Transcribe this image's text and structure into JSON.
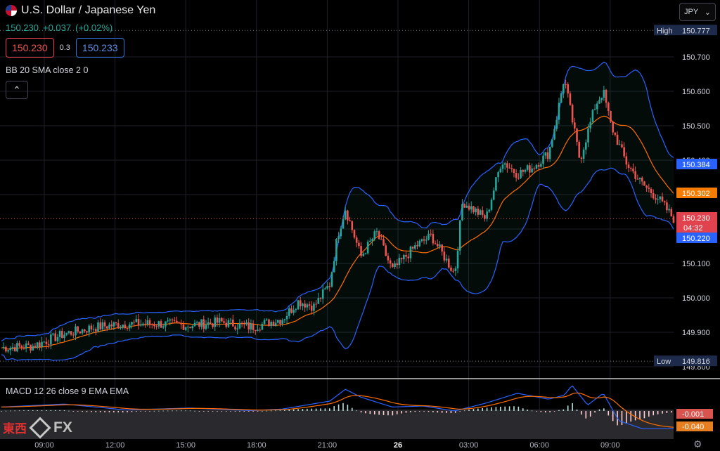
{
  "header": {
    "title": "U.S. Dollar / Japanese Yen",
    "last_price": "150.230",
    "change": "+0.037",
    "change_pct": "(+0.02%)",
    "sell_price": "150.230",
    "spread": "0.3",
    "buy_price": "150.233"
  },
  "indicators": {
    "bb_label": "BB 20 SMA close 2 0",
    "macd_label": "MACD 12 26 close 9 EMA EMA"
  },
  "currency_select": {
    "value": "JPY"
  },
  "icons": {
    "flag": "us-japan-flag-icon",
    "collapse": "chevron-up-icon",
    "dropdown": "chevron-down-icon",
    "settings": "gear-icon"
  },
  "watermark": {
    "kanji": "東西",
    "fx": "FX"
  },
  "colors": {
    "up": "#26a69a",
    "down": "#ef5350",
    "bb_band": "#2962ff",
    "bb_basis": "#ff6d00",
    "macd_line": "#2962ff",
    "signal_line": "#ff6d00",
    "background": "#000000"
  },
  "chart_data": {
    "type": "candlestick",
    "ylim": [
      149.78,
      150.8
    ],
    "y_ticks": [
      "150.700",
      "150.600",
      "150.500",
      "150.400",
      "150.100",
      "150.000",
      "149.900",
      "149.800"
    ],
    "x_ticks": [
      "09:00",
      "12:00",
      "15:00",
      "18:00",
      "21:00",
      "26",
      "03:00",
      "06:00",
      "09:00"
    ],
    "high": {
      "label": "High",
      "value": "150.777"
    },
    "low": {
      "label": "Low",
      "value": "149.816"
    },
    "price_labels": {
      "bb_upper": "150.384",
      "bb_basis": "150.302",
      "last": "150.230",
      "countdown": "04:32",
      "bb_lower": "150.220"
    },
    "close_anchors": [
      [
        0,
        149.855
      ],
      [
        2,
        149.86
      ],
      [
        4,
        149.895
      ],
      [
        6,
        149.915
      ],
      [
        8,
        149.925
      ],
      [
        10,
        149.925
      ],
      [
        12,
        149.92
      ],
      [
        14,
        149.93
      ],
      [
        16,
        149.915
      ],
      [
        18,
        149.94
      ],
      [
        19,
        149.99
      ],
      [
        20,
        149.975
      ],
      [
        21,
        150.04
      ],
      [
        21.5,
        150.18
      ],
      [
        22,
        150.26
      ],
      [
        23,
        150.12
      ],
      [
        24,
        150.19
      ],
      [
        25,
        150.08
      ],
      [
        26.5,
        150.15
      ],
      [
        27.5,
        150.18
      ],
      [
        29,
        150.07
      ],
      [
        29.5,
        150.28
      ],
      [
        31,
        150.23
      ],
      [
        32,
        150.4
      ],
      [
        33,
        150.36
      ],
      [
        34,
        150.38
      ],
      [
        35,
        150.42
      ],
      [
        35.5,
        150.52
      ],
      [
        36,
        150.64
      ],
      [
        37,
        150.4
      ],
      [
        38,
        150.56
      ],
      [
        38.5,
        150.6
      ],
      [
        39,
        150.5
      ],
      [
        40,
        150.39
      ],
      [
        41,
        150.33
      ],
      [
        42,
        150.29
      ],
      [
        43,
        150.23
      ]
    ],
    "macd_pane": {
      "value_a": "-0.001",
      "value_b": "-0.040",
      "line_anchors": [
        [
          0,
          0.02
        ],
        [
          4,
          0.035
        ],
        [
          8,
          0.005
        ],
        [
          12,
          0.015
        ],
        [
          16,
          0.002
        ],
        [
          18,
          0.01
        ],
        [
          21,
          0.05
        ],
        [
          22,
          0.11
        ],
        [
          23,
          0.07
        ],
        [
          25,
          0.02
        ],
        [
          27,
          0.025
        ],
        [
          29,
          0.0
        ],
        [
          31,
          0.04
        ],
        [
          33,
          0.09
        ],
        [
          35,
          0.06
        ],
        [
          36,
          0.08
        ],
        [
          36.5,
          0.13
        ],
        [
          37.5,
          0.03
        ],
        [
          38.5,
          0.09
        ],
        [
          39.5,
          -0.05
        ],
        [
          41,
          -0.09
        ],
        [
          43,
          -0.09
        ]
      ],
      "ylim": [
        -0.12,
        0.15
      ]
    }
  }
}
